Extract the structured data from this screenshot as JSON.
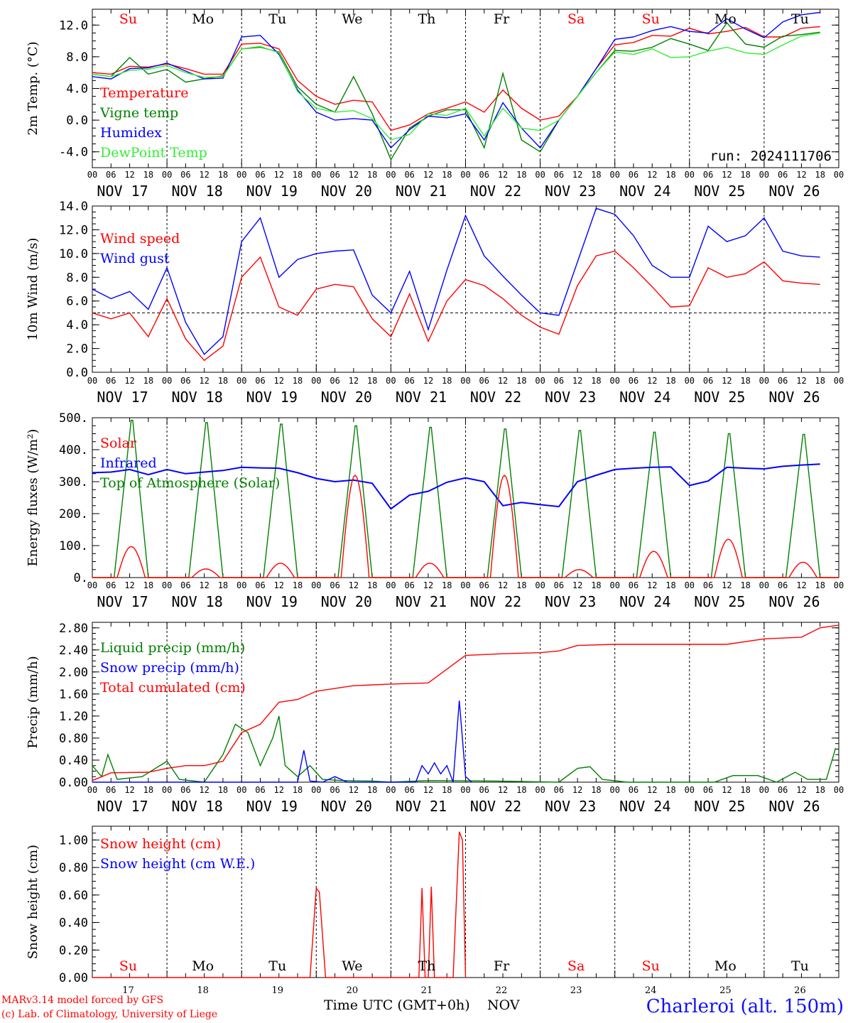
{
  "colors": {
    "red": "#ff0000",
    "green": "#008000",
    "blue": "#0000ff",
    "light_green": "#33ee33",
    "purple": "#800080",
    "day_red": "#ff0000"
  },
  "footer": {
    "model": "MARv3.14 model forced by GFS",
    "lab": "(c) Lab. of Climatology, University of Liege",
    "xlabel": "Time UTC (GMT+0h)",
    "month": "NOV",
    "station": "Charleroi (alt. 150m)"
  },
  "days": {
    "weekdays": [
      "Su",
      "Mo",
      "Tu",
      "We",
      "Th",
      "Fr",
      "Sa",
      "Su",
      "Mo",
      "Tu"
    ],
    "weekday_colors": [
      "red",
      "black",
      "black",
      "black",
      "black",
      "black",
      "red",
      "red",
      "black",
      "black"
    ],
    "dates": [
      "NOV 17",
      "NOV 18",
      "NOV 19",
      "NOV 20",
      "NOV 21",
      "NOV 22",
      "NOV 23",
      "NOV 24",
      "NOV 25",
      "NOV 26"
    ],
    "day_numbers": [
      "17",
      "18",
      "19",
      "20",
      "21",
      "22",
      "23",
      "24",
      "25",
      "26"
    ],
    "hour_ticks": [
      "00",
      "06",
      "12",
      "18"
    ],
    "final_hour": "00"
  },
  "chart_data": [
    {
      "type": "line",
      "ylabel": "2m Temp. (°C)",
      "ylim": [
        -6,
        14
      ],
      "yticks": [
        "12.0",
        "8.0",
        "4.0",
        "0.0",
        "-4.0"
      ],
      "yticks_values": [
        12,
        8,
        4,
        0,
        -4
      ],
      "annotation": "run: 2024111706",
      "x_hours": [
        0,
        6,
        12,
        18,
        24,
        30,
        36,
        42,
        48,
        54,
        60,
        66,
        72,
        78,
        84,
        90,
        96,
        102,
        108,
        114,
        120,
        126,
        132,
        138,
        144,
        150,
        156,
        162,
        168,
        174,
        180,
        186,
        192,
        198,
        204,
        210,
        216,
        222,
        228,
        234
      ],
      "series": [
        {
          "name": "Temperature",
          "color": "red",
          "values": [
            6.0,
            5.8,
            6.8,
            6.7,
            7.1,
            6.5,
            5.8,
            5.8,
            9.6,
            9.7,
            9.0,
            5.0,
            3.0,
            2.0,
            2.5,
            2.3,
            -1.3,
            -0.6,
            0.8,
            1.5,
            2.3,
            1.0,
            3.8,
            1.5,
            0.0,
            0.5,
            3.0,
            6.5,
            9.5,
            9.8,
            10.7,
            10.6,
            11.6,
            10.9,
            11.2,
            11.7,
            10.5,
            10.5,
            11.6,
            11.8
          ]
        },
        {
          "name": "Vigne temp",
          "color": "green",
          "values": [
            5.8,
            5.5,
            7.9,
            5.8,
            6.4,
            4.8,
            5.2,
            5.6,
            9.0,
            9.2,
            8.6,
            4.2,
            2.0,
            1.0,
            5.5,
            0.8,
            -5.0,
            -1.0,
            0.5,
            1.3,
            1.3,
            -3.5,
            5.9,
            -2.5,
            -4.0,
            0.0,
            3.0,
            6.0,
            8.8,
            8.7,
            9.2,
            10.3,
            9.6,
            8.8,
            12.3,
            9.6,
            9.2,
            10.6,
            10.8,
            11.1
          ]
        },
        {
          "name": "Humidex",
          "color": "blue",
          "values": [
            5.5,
            5.2,
            6.5,
            6.6,
            7.2,
            6.2,
            5.2,
            5.3,
            10.5,
            10.7,
            8.3,
            3.8,
            1.0,
            0.0,
            0.2,
            0.0,
            -3.5,
            -1.2,
            0.5,
            0.3,
            0.8,
            -2.5,
            2.2,
            -1.0,
            -3.5,
            0.0,
            3.0,
            6.5,
            10.2,
            10.5,
            11.3,
            11.8,
            11.2,
            11.0,
            12.8,
            11.5,
            10.4,
            12.4,
            13.3,
            13.6
          ]
        },
        {
          "name": "DewPoint Temp",
          "color": "light_green",
          "values": [
            5.8,
            5.5,
            6.3,
            6.4,
            6.9,
            6.0,
            5.4,
            5.5,
            9.0,
            9.3,
            8.5,
            3.6,
            1.5,
            1.0,
            1.2,
            0.2,
            -2.5,
            -1.8,
            0.8,
            0.6,
            1.5,
            -2.0,
            1.5,
            -1.0,
            -1.3,
            0.0,
            3.0,
            6.0,
            8.6,
            8.3,
            9.0,
            7.9,
            8.0,
            8.7,
            9.2,
            8.5,
            8.3,
            9.5,
            10.6,
            11.0
          ]
        }
      ]
    },
    {
      "type": "line",
      "ylabel": "10m Wind (m/s)",
      "ylim": [
        0,
        14
      ],
      "yticks": [
        "14.0",
        "12.0",
        "10.0",
        "8.0",
        "6.0",
        "4.0",
        "2.0",
        "0.0"
      ],
      "yticks_values": [
        14,
        12,
        10,
        8,
        6,
        4,
        2,
        0
      ],
      "reference_line": 5,
      "x_hours": [
        0,
        6,
        12,
        18,
        24,
        30,
        36,
        42,
        48,
        54,
        60,
        66,
        72,
        78,
        84,
        90,
        96,
        102,
        108,
        114,
        120,
        126,
        132,
        138,
        144,
        150,
        156,
        162,
        168,
        174,
        180,
        186,
        192,
        198,
        204,
        210,
        216,
        222,
        228,
        234
      ],
      "series": [
        {
          "name": "Wind speed",
          "color": "red",
          "values": [
            5.0,
            4.5,
            5.0,
            3.0,
            6.2,
            2.8,
            1.0,
            2.2,
            8.0,
            9.7,
            5.5,
            4.8,
            7.0,
            7.4,
            7.2,
            4.5,
            3.0,
            6.6,
            2.6,
            6.0,
            7.8,
            7.3,
            6.2,
            4.8,
            3.8,
            3.2,
            7.3,
            9.8,
            10.2,
            8.8,
            7.2,
            5.5,
            5.6,
            8.8,
            8.0,
            8.3,
            9.3,
            7.7,
            7.5,
            7.4
          ]
        },
        {
          "name": "Wind gust",
          "color": "blue",
          "values": [
            7.0,
            6.2,
            6.8,
            5.3,
            8.8,
            4.2,
            1.5,
            3.0,
            11.0,
            13.0,
            8.0,
            9.5,
            10.0,
            10.2,
            10.3,
            6.5,
            5.0,
            8.5,
            3.6,
            8.6,
            13.2,
            9.8,
            8.1,
            6.5,
            5.0,
            4.8,
            9.3,
            13.8,
            13.3,
            11.5,
            9.0,
            8.0,
            8.0,
            12.3,
            11.0,
            11.5,
            13.0,
            10.2,
            9.8,
            9.7
          ]
        }
      ]
    },
    {
      "type": "line",
      "ylabel": "Energy fluxes (W/m²)",
      "ylim": [
        0,
        500
      ],
      "yticks": [
        "500.",
        "400.",
        "300.",
        "200.",
        "100.",
        "0."
      ],
      "yticks_values": [
        500,
        400,
        300,
        200,
        100,
        0
      ],
      "x_hours": [
        0,
        6,
        12,
        18,
        24,
        30,
        36,
        42,
        48,
        54,
        60,
        66,
        72,
        78,
        84,
        90,
        96,
        102,
        108,
        114,
        120,
        126,
        132,
        138,
        144,
        150,
        156,
        162,
        168,
        174,
        180,
        186,
        192,
        198,
        204,
        210,
        216,
        222,
        228,
        234
      ],
      "series": [
        {
          "name": "Solar",
          "color": "red",
          "daily_peak": [
            97,
            27,
            45,
            320,
            45,
            320,
            25,
            82,
            120,
            48
          ]
        },
        {
          "name": "Infrared",
          "color": "blue",
          "values": [
            328,
            330,
            338,
            322,
            338,
            325,
            330,
            335,
            345,
            343,
            342,
            328,
            310,
            300,
            305,
            295,
            215,
            258,
            270,
            298,
            312,
            300,
            225,
            235,
            228,
            222,
            300,
            320,
            338,
            342,
            345,
            346,
            288,
            302,
            345,
            342,
            340,
            348,
            352,
            355
          ]
        },
        {
          "name": "Top of Atmosphere (Solar)",
          "color": "green",
          "daily_peak": [
            492,
            485,
            480,
            475,
            470,
            465,
            460,
            455,
            450,
            448
          ]
        }
      ]
    },
    {
      "type": "line",
      "ylabel": "Precip (mm/h)",
      "ylim": [
        0,
        2.9
      ],
      "yticks": [
        "2.80",
        "2.40",
        "2.00",
        "1.60",
        "1.20",
        "0.80",
        "0.40",
        "0.00"
      ],
      "yticks_values": [
        2.8,
        2.4,
        2.0,
        1.6,
        1.2,
        0.8,
        0.4,
        0.0
      ],
      "series": [
        {
          "name": "Liquid precip (mm/h)",
          "color": "green",
          "points": [
            [
              0,
              0.3
            ],
            [
              3,
              0.1
            ],
            [
              5,
              0.5
            ],
            [
              8,
              0.05
            ],
            [
              16,
              0.1
            ],
            [
              24,
              0.38
            ],
            [
              28,
              0.05
            ],
            [
              36,
              0.0
            ],
            [
              42,
              0.5
            ],
            [
              46,
              1.05
            ],
            [
              50,
              0.9
            ],
            [
              54,
              0.3
            ],
            [
              58,
              0.8
            ],
            [
              60,
              1.2
            ],
            [
              62,
              0.3
            ],
            [
              66,
              0.1
            ],
            [
              70,
              0.3
            ],
            [
              74,
              0.05
            ],
            [
              80,
              0.03
            ],
            [
              90,
              0.02
            ],
            [
              96,
              0.0
            ],
            [
              108,
              0.03
            ],
            [
              130,
              0.02
            ],
            [
              150,
              0.0
            ],
            [
              156,
              0.25
            ],
            [
              160,
              0.28
            ],
            [
              164,
              0.05
            ],
            [
              172,
              0.0
            ],
            [
              200,
              0.0
            ],
            [
              206,
              0.12
            ],
            [
              214,
              0.12
            ],
            [
              220,
              0.0
            ],
            [
              226,
              0.18
            ],
            [
              230,
              0.05
            ],
            [
              236,
              0.05
            ],
            [
              239,
              0.62
            ],
            [
              242,
              0.2
            ],
            [
              246,
              0.02
            ]
          ]
        },
        {
          "name": "Snow precip (mm/h)",
          "color": "blue",
          "points": [
            [
              0,
              0.0
            ],
            [
              66,
              0.0
            ],
            [
              68,
              0.58
            ],
            [
              70,
              0.02
            ],
            [
              74,
              0.0
            ],
            [
              78,
              0.1
            ],
            [
              82,
              0.0
            ],
            [
              96,
              0.0
            ],
            [
              104,
              0.0
            ],
            [
              106,
              0.3
            ],
            [
              108,
              0.15
            ],
            [
              110,
              0.35
            ],
            [
              112,
              0.15
            ],
            [
              114,
              0.3
            ],
            [
              116,
              0.0
            ],
            [
              118,
              1.48
            ],
            [
              120,
              0.1
            ],
            [
              122,
              0.0
            ],
            [
              246,
              0.0
            ]
          ]
        },
        {
          "name": "Total cumulated (cm)",
          "color": "red",
          "points": [
            [
              0,
              0.03
            ],
            [
              6,
              0.17
            ],
            [
              18,
              0.18
            ],
            [
              24,
              0.25
            ],
            [
              30,
              0.3
            ],
            [
              36,
              0.3
            ],
            [
              42,
              0.38
            ],
            [
              48,
              0.9
            ],
            [
              54,
              1.05
            ],
            [
              60,
              1.45
            ],
            [
              66,
              1.5
            ],
            [
              72,
              1.65
            ],
            [
              78,
              1.7
            ],
            [
              84,
              1.75
            ],
            [
              96,
              1.78
            ],
            [
              108,
              1.8
            ],
            [
              114,
              2.05
            ],
            [
              120,
              2.3
            ],
            [
              132,
              2.33
            ],
            [
              144,
              2.35
            ],
            [
              150,
              2.38
            ],
            [
              156,
              2.48
            ],
            [
              168,
              2.5
            ],
            [
              180,
              2.5
            ],
            [
              204,
              2.5
            ],
            [
              216,
              2.6
            ],
            [
              228,
              2.63
            ],
            [
              234,
              2.8
            ],
            [
              240,
              2.85
            ],
            [
              246,
              2.86
            ]
          ]
        }
      ]
    },
    {
      "type": "line",
      "ylabel": "Snow height (cm)",
      "ylim": [
        0,
        1.1
      ],
      "yticks": [
        "1.00",
        "0.80",
        "0.60",
        "0.40",
        "0.20",
        "0.00"
      ],
      "yticks_values": [
        1.0,
        0.8,
        0.6,
        0.4,
        0.2,
        0.0
      ],
      "series": [
        {
          "name": "Snow height (cm)",
          "color": "red",
          "points": [
            [
              0,
              0
            ],
            [
              70,
              0
            ],
            [
              72,
              0.65
            ],
            [
              73,
              0.62
            ],
            [
              75,
              0
            ],
            [
              105,
              0
            ],
            [
              106,
              0.65
            ],
            [
              107,
              0
            ],
            [
              108,
              0
            ],
            [
              109,
              0.66
            ],
            [
              110,
              0
            ],
            [
              116,
              0
            ],
            [
              118,
              1.06
            ],
            [
              119,
              1.0
            ],
            [
              120,
              0
            ],
            [
              246,
              0
            ]
          ]
        },
        {
          "name": "Snow height (cm W.E.)",
          "color": "blue",
          "points": [
            [
              0,
              0
            ],
            [
              246,
              0
            ]
          ]
        }
      ]
    }
  ]
}
